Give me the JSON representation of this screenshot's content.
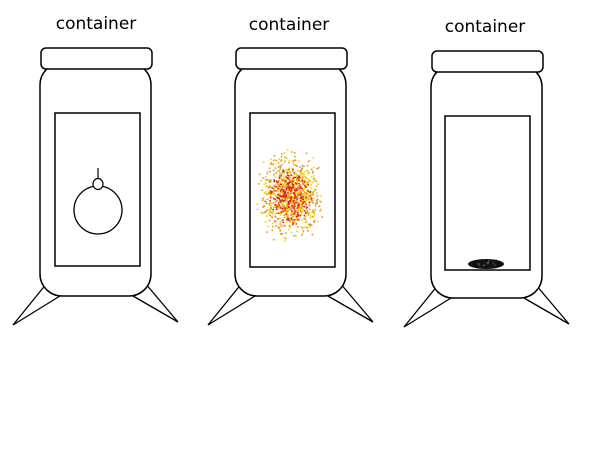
{
  "diagram": {
    "panels": [
      {
        "label": "container",
        "contents": "round-flask-icon"
      },
      {
        "label": "container",
        "contents": "fire-burst"
      },
      {
        "label": "container",
        "contents": "ash-pile"
      }
    ],
    "colors": {
      "outline": "#000000",
      "background": "#ffffff",
      "fire_red": "#e01e12",
      "fire_orange": "#e8951a",
      "fire_yellow": "#f2d11a",
      "ash": "#111111"
    }
  }
}
